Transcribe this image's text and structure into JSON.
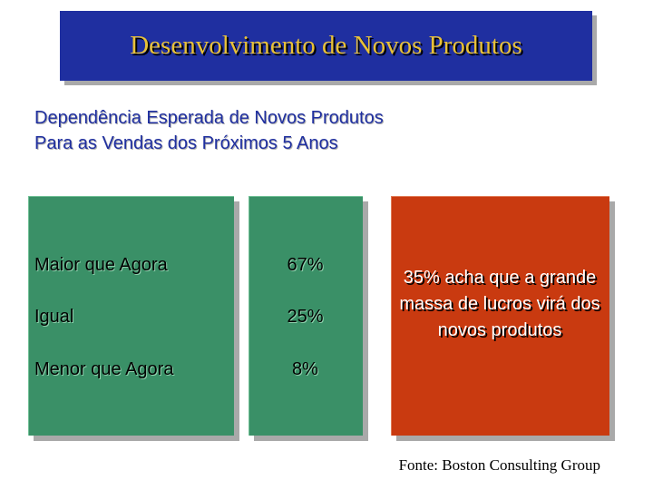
{
  "title": "Desenvolvimento de Novos Produtos",
  "subtitle": "Dependência Esperada de Novos Produtos Para as Vendas dos Próximos 5 Anos",
  "rows": [
    {
      "label": "Maior que Agora",
      "value": "67%"
    },
    {
      "label": "Igual",
      "value": "25%"
    },
    {
      "label": "Menor que Agora",
      "value": "8%"
    }
  ],
  "callout": "35% acha que a grande massa de lucros virá dos novos produtos",
  "source": "Fonte: Boston Consulting Group",
  "colors": {
    "title_background": "#1f2fa0",
    "title_text": "#e8c13a",
    "panel_green": "#3a9067",
    "panel_red": "#c93a10",
    "subtitle_text": "#1f2fa0"
  }
}
